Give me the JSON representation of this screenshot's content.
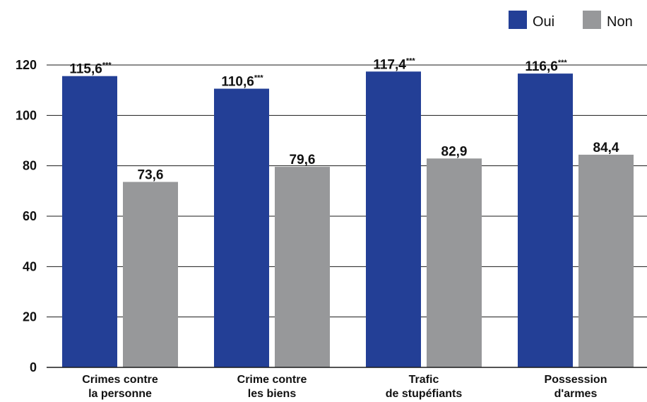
{
  "chart_data": {
    "type": "bar",
    "categories": [
      [
        "Crimes contre",
        "la personne"
      ],
      [
        "Crime contre",
        "les biens"
      ],
      [
        "Trafic",
        "de stupéfiants"
      ],
      [
        "Possession",
        "d'armes"
      ]
    ],
    "series": [
      {
        "name": "Oui",
        "color": "#233f96",
        "values": [
          115.6,
          110.6,
          117.4,
          116.6
        ],
        "labels": [
          "115,6",
          "110,6",
          "117,4",
          "116,6"
        ],
        "significance": [
          "***",
          "***",
          "***",
          "***"
        ]
      },
      {
        "name": "Non",
        "color": "#97989a",
        "values": [
          73.6,
          79.6,
          82.9,
          84.4
        ],
        "labels": [
          "73,6",
          "79,6",
          "82,9",
          "84,4"
        ],
        "significance": [
          "",
          "",
          "",
          ""
        ]
      }
    ],
    "yticks": [
      0,
      20,
      40,
      60,
      80,
      100,
      120
    ],
    "ylim": [
      0,
      120
    ],
    "grid": true,
    "legend_position": "top-right",
    "title": "",
    "xlabel": "",
    "ylabel": ""
  }
}
